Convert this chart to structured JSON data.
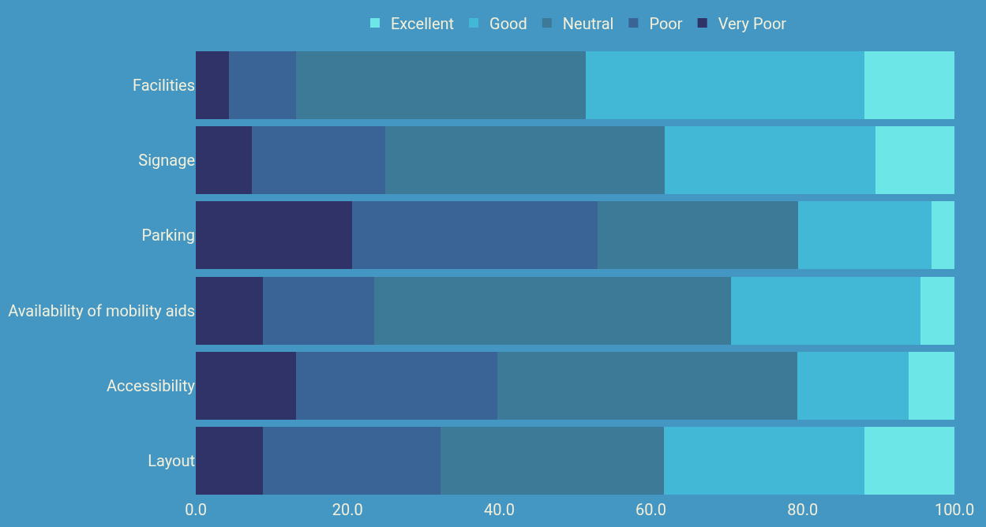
{
  "chart_data": {
    "type": "bar",
    "orientation": "horizontal",
    "stacked": true,
    "categories": [
      "Facilities",
      "Signage",
      "Parking",
      "Availability of mobility aids",
      "Accessibility",
      "Layout"
    ],
    "series": [
      {
        "name": "Very Poor",
        "color": "#2f3368",
        "values": [
          4.4,
          7.4,
          20.6,
          8.8,
          13.2,
          8.8
        ]
      },
      {
        "name": "Poor",
        "color": "#3a6495",
        "values": [
          8.8,
          17.6,
          32.4,
          14.7,
          26.5,
          23.5
        ]
      },
      {
        "name": "Neutral",
        "color": "#3d7a98",
        "values": [
          38.2,
          36.8,
          26.4,
          47.0,
          39.6,
          29.4
        ]
      },
      {
        "name": "Good",
        "color": "#42b7d6",
        "values": [
          36.7,
          27.8,
          17.6,
          25.0,
          14.7,
          26.4
        ]
      },
      {
        "name": "Excellent",
        "color": "#6ce6e6",
        "values": [
          11.9,
          10.4,
          3.0,
          4.5,
          6.0,
          11.9
        ]
      }
    ],
    "xlim": [
      0,
      100
    ],
    "xticks": [
      {
        "value": 0,
        "label": "0.0"
      },
      {
        "value": 20,
        "label": "20.0"
      },
      {
        "value": 40,
        "label": "40.0"
      },
      {
        "value": 60,
        "label": "60.0"
      },
      {
        "value": 80,
        "label": "80.0"
      },
      {
        "value": 100,
        "label": "100.0"
      }
    ],
    "grid": false,
    "legend": "top"
  }
}
